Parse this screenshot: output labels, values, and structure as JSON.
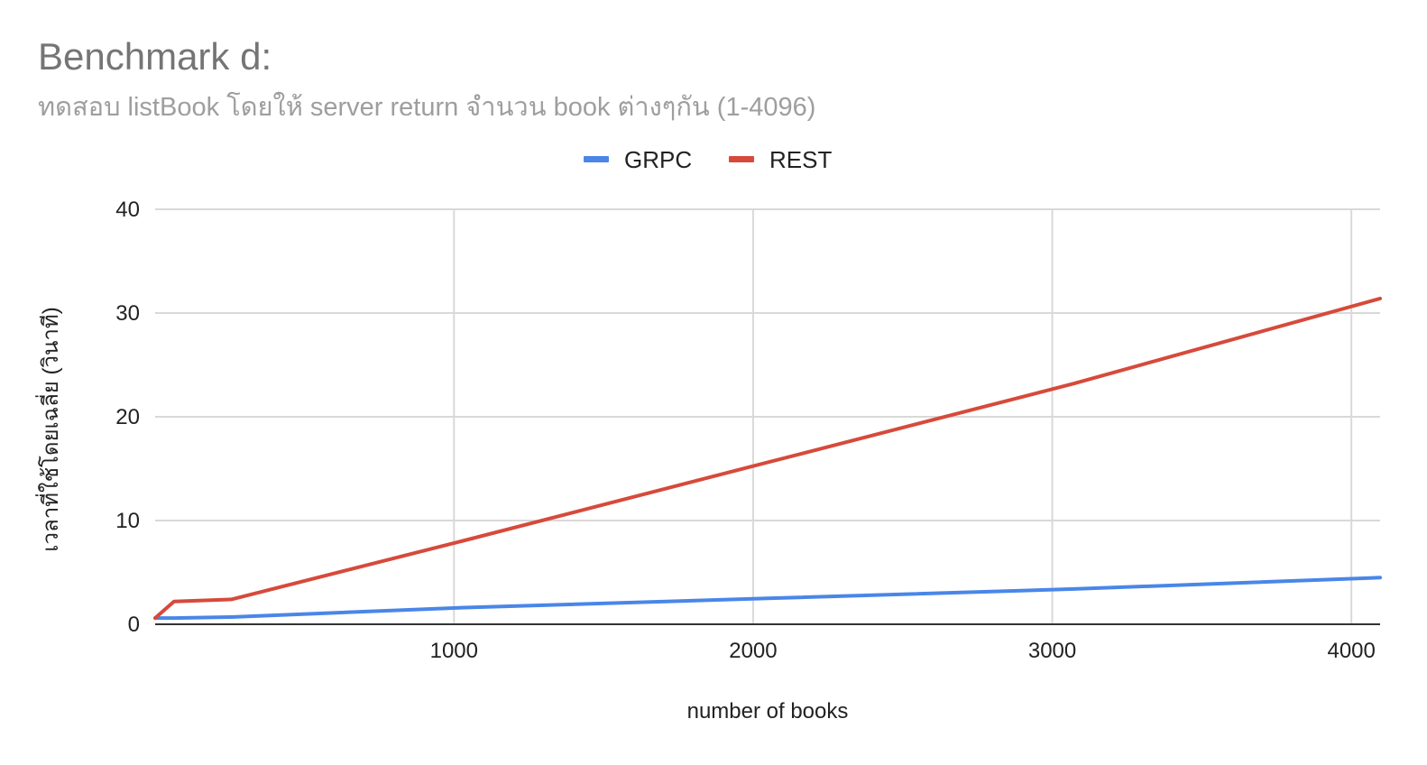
{
  "chart_data": {
    "type": "line",
    "title": "Benchmark d:",
    "subtitle": "ทดสอบ listBook โดยให้ server return จำนวน book ต่างๆกัน (1-4096)",
    "xlabel": "number of books",
    "ylabel": "เวลาที่ใช้โดยเฉลี่ย (วินาที)",
    "xlim": [
      1,
      4096
    ],
    "ylim": [
      0,
      40
    ],
    "x_ticks": [
      1000,
      2000,
      3000,
      4000
    ],
    "y_ticks": [
      0,
      10,
      20,
      30,
      40
    ],
    "grid": true,
    "legend_position": "top",
    "series": [
      {
        "name": "GRPC",
        "color": "#4a86e8",
        "x": [
          1,
          64,
          256,
          1024,
          2048,
          3072,
          4096
        ],
        "values": [
          0.6,
          0.6,
          0.7,
          1.6,
          2.5,
          3.4,
          4.5
        ]
      },
      {
        "name": "REST",
        "color": "#d64a3b",
        "x": [
          1,
          64,
          256,
          1024,
          2048,
          3072,
          4096
        ],
        "values": [
          0.6,
          2.2,
          2.4,
          8.0,
          15.6,
          23.2,
          31.4
        ]
      }
    ]
  }
}
